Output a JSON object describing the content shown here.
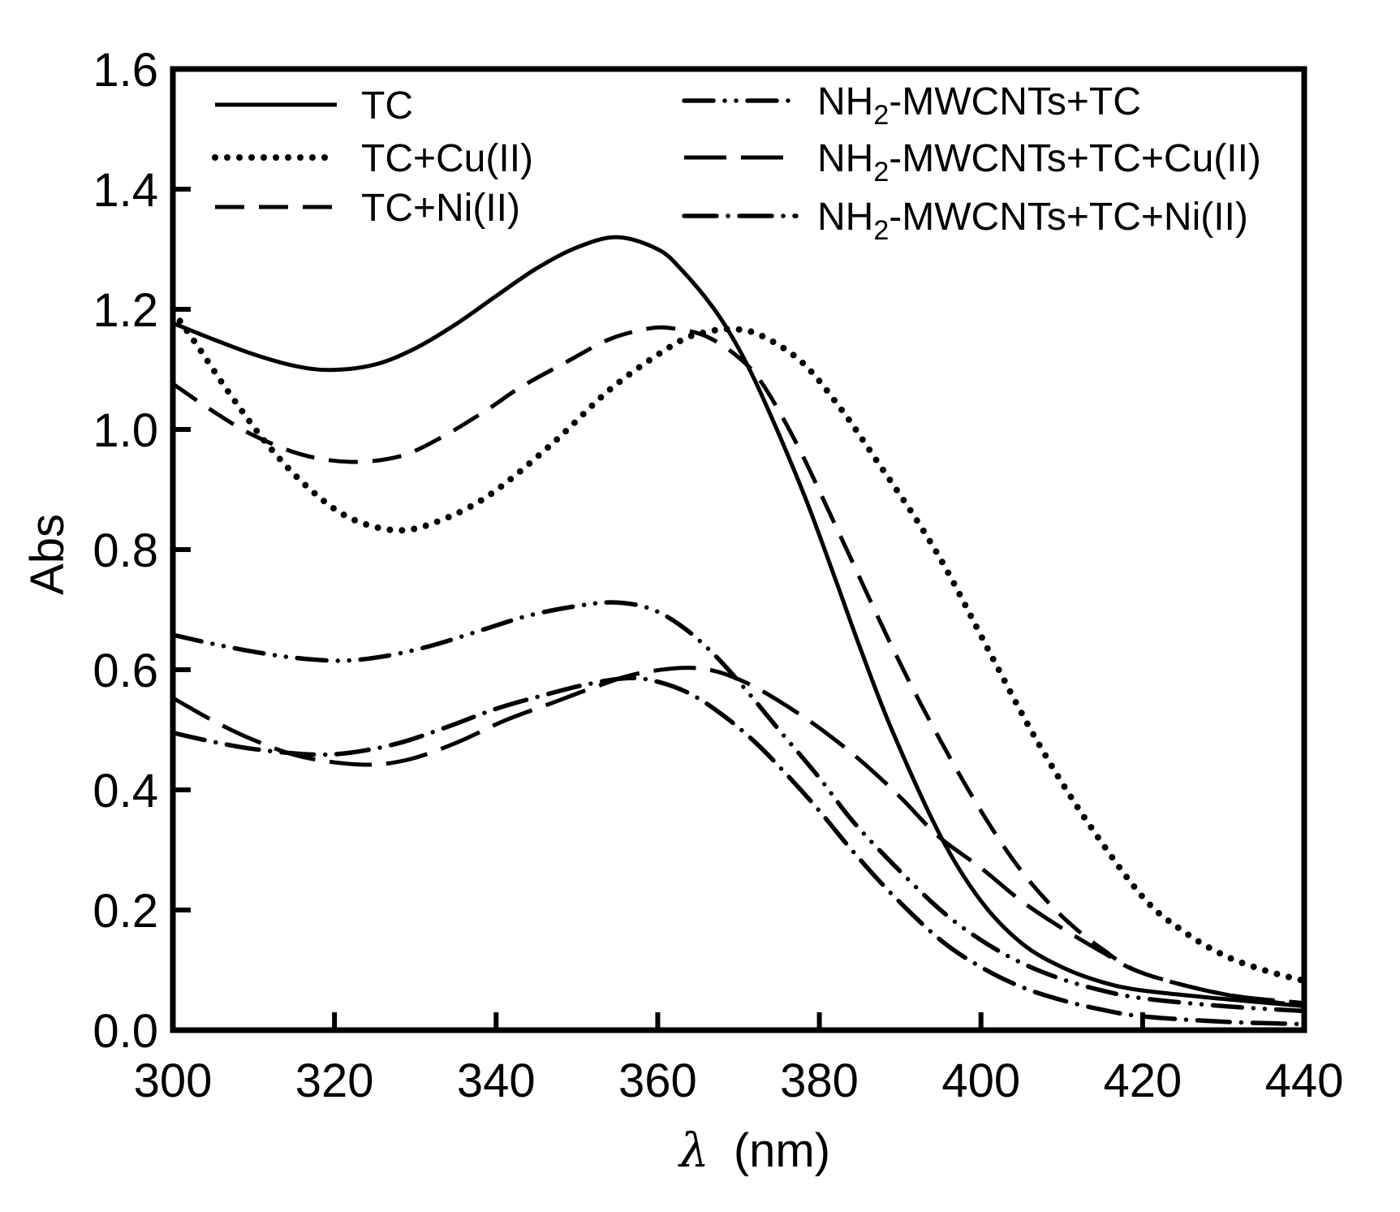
{
  "chart_data": {
    "type": "line",
    "title": "",
    "xlabel_symbol": "λ",
    "xlabel_unit": "(nm)",
    "ylabel": "Abs",
    "xlim": [
      300,
      440
    ],
    "ylim": [
      0.0,
      1.6
    ],
    "xticks": [
      "300",
      "320",
      "340",
      "360",
      "380",
      "400",
      "420",
      "440"
    ],
    "xtick_values": [
      300,
      320,
      340,
      360,
      380,
      400,
      420,
      440
    ],
    "yticks": [
      "0.0",
      "0.2",
      "0.4",
      "0.6",
      "0.8",
      "1.0",
      "1.2",
      "1.4",
      "1.6"
    ],
    "ytick_values": [
      0.0,
      0.2,
      0.4,
      0.6,
      0.8,
      1.0,
      1.2,
      1.4,
      1.6
    ],
    "grid": false,
    "legend_placement": "top",
    "series": [
      {
        "name": "TC",
        "label_main": "TC",
        "label_sub": "",
        "label_rest": "",
        "style": "solid",
        "color": "#000000",
        "x": [
          300,
          305,
          310,
          315,
          319.5,
          325,
          330,
          335,
          340,
          345,
          350,
          355,
          360,
          363,
          367,
          370,
          373,
          378,
          382,
          385,
          389,
          395,
          400,
          405,
          410,
          415,
          420,
          430,
          440
        ],
        "y": [
          1.177,
          1.15,
          1.125,
          1.106,
          1.099,
          1.108,
          1.135,
          1.175,
          1.222,
          1.268,
          1.303,
          1.32,
          1.3,
          1.265,
          1.2,
          1.135,
          1.053,
          0.895,
          0.75,
          0.638,
          0.499,
          0.323,
          0.215,
          0.145,
          0.105,
          0.08,
          0.066,
          0.052,
          0.04
        ]
      },
      {
        "name": "TC+Cu(II)",
        "label_main": "TC+Cu(II)",
        "label_sub": "",
        "label_rest": "",
        "style": "dotted",
        "color": "#000000",
        "x": [
          300,
          303,
          307,
          312,
          317,
          322,
          327.8,
          333,
          339.3,
          347,
          354.4,
          362.2,
          366,
          369.5,
          373,
          378,
          382.9,
          387,
          392,
          396,
          401.3,
          407,
          413,
          420,
          425,
          430,
          435,
          440
        ],
        "y": [
          1.197,
          1.14,
          1.06,
          0.97,
          0.9,
          0.852,
          0.832,
          0.848,
          0.892,
          0.977,
          1.07,
          1.143,
          1.162,
          1.167,
          1.155,
          1.11,
          1.03,
          0.95,
          0.85,
          0.76,
          0.623,
          0.48,
          0.35,
          0.222,
          0.165,
          0.125,
          0.1,
          0.082
        ]
      },
      {
        "name": "TC+Ni(II)",
        "label_main": "TC+Ni(II)",
        "label_sub": "",
        "label_rest": "",
        "style": "dashed",
        "color": "#000000",
        "x": [
          300,
          305,
          310,
          316,
          322,
          328,
          333,
          338.8,
          343,
          348.8,
          354,
          358.9,
          362,
          366,
          370,
          373,
          377.2,
          382,
          389,
          394.3,
          400,
          405,
          410,
          415,
          420,
          430,
          440
        ],
        "y": [
          1.076,
          1.03,
          0.99,
          0.958,
          0.946,
          0.955,
          0.985,
          1.032,
          1.07,
          1.113,
          1.15,
          1.168,
          1.168,
          1.155,
          1.12,
          1.075,
          0.976,
          0.84,
          0.638,
          0.499,
          0.365,
          0.265,
          0.19,
          0.135,
          0.095,
          0.06,
          0.04
        ]
      },
      {
        "name": "NH2-MWCNTs+TC",
        "label_main": "NH",
        "label_sub": "2",
        "label_rest": "-MWCNTs+TC",
        "style": "dash-dot-dot",
        "color": "#000000",
        "x": [
          300,
          305,
          310,
          315,
          320.7,
          326,
          332,
          338,
          344,
          350,
          354.6,
          359,
          363,
          367,
          371,
          375,
          380,
          384,
          389,
          395,
          400,
          405,
          410,
          415,
          420,
          430,
          440
        ],
        "y": [
          0.658,
          0.643,
          0.63,
          0.62,
          0.615,
          0.622,
          0.64,
          0.665,
          0.69,
          0.706,
          0.712,
          0.702,
          0.672,
          0.625,
          0.565,
          0.5,
          0.42,
          0.35,
          0.278,
          0.2,
          0.15,
          0.112,
          0.085,
          0.066,
          0.053,
          0.04,
          0.032
        ]
      },
      {
        "name": "NH2-MWCNTs+TC+Cu(II)",
        "label_main": "NH",
        "label_sub": "2",
        "label_rest": "-MWCNTs+TC+Cu(II)",
        "style": "long-dash",
        "color": "#000000",
        "x": [
          300,
          305,
          310,
          316,
          323.4,
          329,
          335,
          341,
          347,
          352,
          357,
          362.9,
          367,
          371,
          375,
          380,
          385,
          390,
          394.7,
          400,
          405,
          410,
          415,
          420,
          430,
          440
        ],
        "y": [
          0.553,
          0.515,
          0.483,
          0.455,
          0.442,
          0.45,
          0.478,
          0.515,
          0.545,
          0.57,
          0.592,
          0.603,
          0.598,
          0.578,
          0.548,
          0.503,
          0.45,
          0.388,
          0.323,
          0.27,
          0.215,
          0.17,
          0.13,
          0.095,
          0.06,
          0.045
        ]
      },
      {
        "name": "NH2-MWCNTs+TC+Ni(II)",
        "label_main": "NH",
        "label_sub": "2",
        "label_rest": "-MWCNTs+TC+Ni(II)",
        "style": "dash-dot",
        "color": "#000000",
        "x": [
          300,
          305,
          310,
          317,
          322,
          328,
          334,
          340,
          346,
          351,
          356.2,
          360,
          364,
          368,
          372,
          376,
          380,
          384,
          389,
          395,
          400,
          405,
          410,
          415,
          420,
          430,
          440
        ],
        "y": [
          0.495,
          0.48,
          0.468,
          0.459,
          0.462,
          0.478,
          0.505,
          0.535,
          0.558,
          0.575,
          0.586,
          0.58,
          0.56,
          0.525,
          0.48,
          0.425,
          0.365,
          0.3,
          0.226,
          0.15,
          0.105,
          0.072,
          0.05,
          0.034,
          0.023,
          0.014,
          0.01
        ]
      }
    ]
  }
}
